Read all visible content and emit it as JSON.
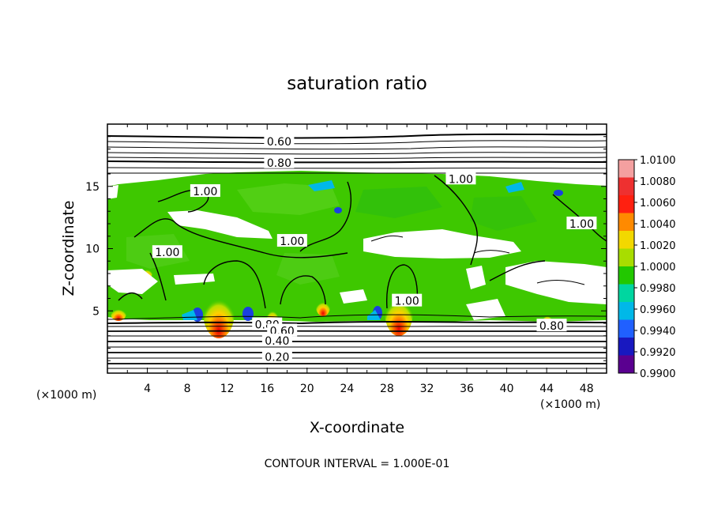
{
  "chart_data": {
    "type": "heatmap",
    "title": "saturation ratio",
    "xlabel": "X-coordinate",
    "ylabel": "Z-coordinate",
    "x_unit_left": "(×1000 m)",
    "x_unit_right": "(×1000 m)",
    "xlim": [
      0,
      50
    ],
    "ylim": [
      0,
      20
    ],
    "x_ticks": [
      "4",
      "8",
      "12",
      "16",
      "20",
      "24",
      "28",
      "32",
      "36",
      "40",
      "44",
      "48"
    ],
    "x_tick_values": [
      4,
      8,
      12,
      16,
      20,
      24,
      28,
      32,
      36,
      40,
      44,
      48
    ],
    "y_ticks": [
      "5",
      "10",
      "15"
    ],
    "y_tick_values": [
      5,
      10,
      15
    ],
    "contour_interval_text": "CONTOUR INTERVAL = 1.000E-01",
    "contour_labels": [
      {
        "text": "0.60",
        "x": 17.2,
        "z": 18.6
      },
      {
        "text": "0.80",
        "x": 17.2,
        "z": 16.9
      },
      {
        "text": "1.00",
        "x": 35.4,
        "z": 15.6
      },
      {
        "text": "1.00",
        "x": 9.8,
        "z": 14.6
      },
      {
        "text": "1.00",
        "x": 47.5,
        "z": 12.0
      },
      {
        "text": "1.00",
        "x": 18.5,
        "z": 10.6
      },
      {
        "text": "1.00",
        "x": 6.0,
        "z": 9.7
      },
      {
        "text": "1.00",
        "x": 30.0,
        "z": 5.8
      },
      {
        "text": "0.80",
        "x": 16.0,
        "z": 3.9
      },
      {
        "text": "0.60",
        "x": 17.5,
        "z": 3.4
      },
      {
        "text": "0.40",
        "x": 17.0,
        "z": 2.6
      },
      {
        "text": "0.20",
        "x": 17.0,
        "z": 1.3
      },
      {
        "text": "0.80",
        "x": 44.5,
        "z": 3.8
      }
    ],
    "colorbar": {
      "labels": [
        "1.0100",
        "1.0080",
        "1.0060",
        "1.0040",
        "1.0020",
        "1.0000",
        "0.9980",
        "0.9960",
        "0.9940",
        "0.9920",
        "0.9900"
      ],
      "colors": [
        "#f4a0a0",
        "#ee3030",
        "#ff2010",
        "#ff8a00",
        "#f2d800",
        "#a8dd00",
        "#22c800",
        "#00d6a0",
        "#00b8e8",
        "#2060ff",
        "#1818c0",
        "#5a0090"
      ]
    }
  }
}
